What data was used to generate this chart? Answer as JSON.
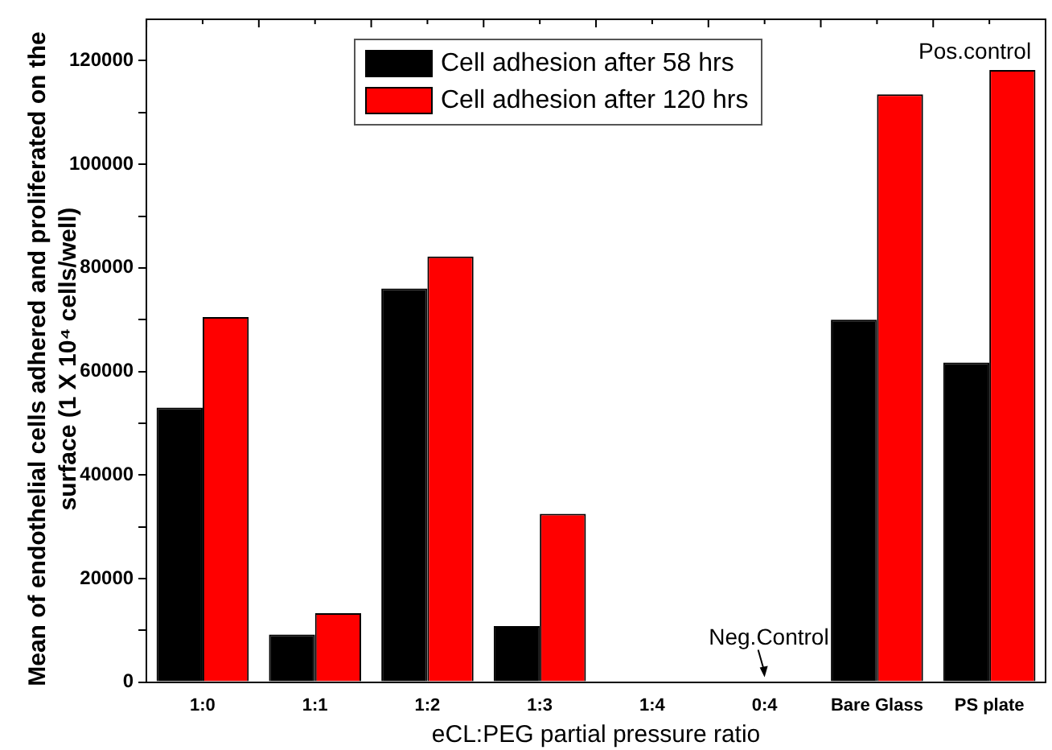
{
  "chart_data": {
    "type": "bar",
    "xlabel": "eCL:PEG partial pressure ratio",
    "ylabel": "Mean of endothelial cells adhered and proliferated on the surface (1 X 10⁴ cells/well)",
    "categories": [
      "1:0",
      "1:1",
      "1:2",
      "1:3",
      "1:4",
      "0:4",
      "Bare Glass",
      "PS plate"
    ],
    "series": [
      {
        "name": "Cell adhesion after 58 hrs",
        "color": "#000000",
        "values": [
          53000,
          9200,
          76000,
          10800,
          0,
          0,
          70000,
          61700
        ]
      },
      {
        "name": "Cell adhesion after 120 hrs",
        "color": "#ff0000",
        "values": [
          70500,
          13300,
          82200,
          32500,
          0,
          0,
          113500,
          118200
        ]
      }
    ],
    "ylim": [
      0,
      128000
    ],
    "yticks": [
      0,
      {
        "value": 10000,
        "label": null
      },
      20000,
      {
        "value": 30000,
        "label": null
      },
      40000,
      {
        "value": 50000,
        "label": null
      },
      60000,
      {
        "value": 70000,
        "label": null
      },
      80000,
      {
        "value": 90000,
        "label": null
      },
      100000,
      {
        "value": 110000,
        "label": null
      },
      120000
    ],
    "annotations": [
      {
        "text": "Pos.control",
        "x": "PS plate",
        "y": 118200
      },
      {
        "text": "Neg.Control",
        "x": "0:4",
        "y": 0
      }
    ],
    "legend": "top",
    "grid": false
  }
}
